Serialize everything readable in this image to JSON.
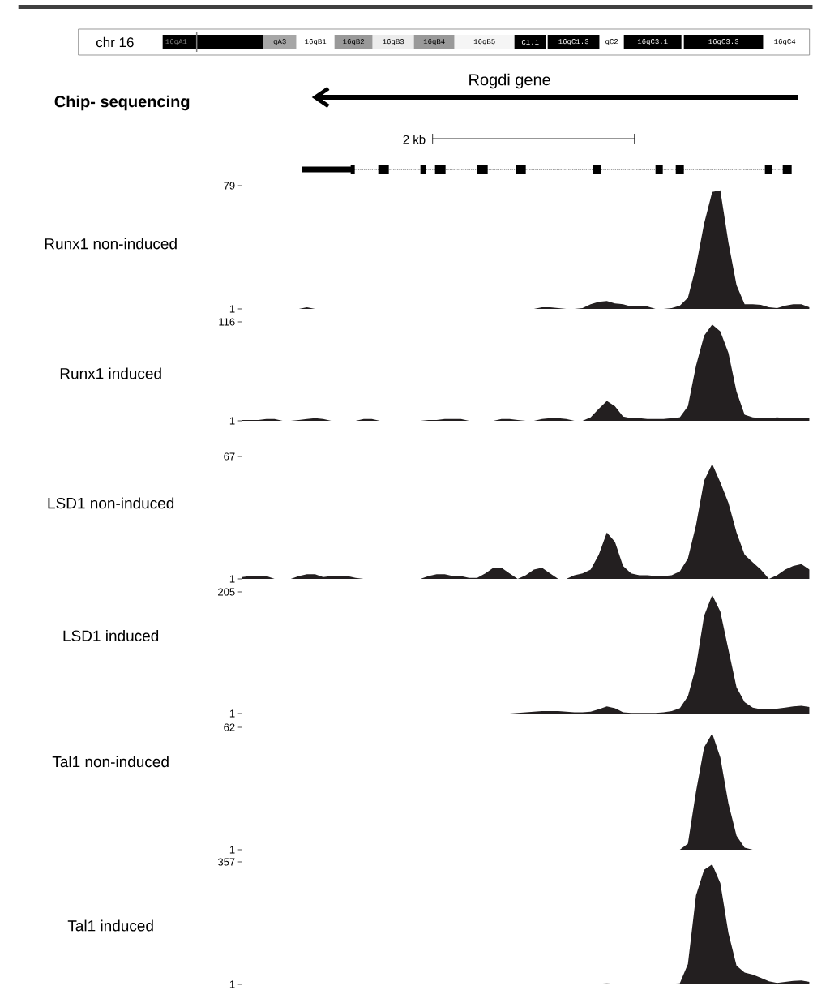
{
  "chart_data": [
    {
      "type": "area",
      "title": "Chip- sequencing",
      "ylabel": "Runx1 non-induced",
      "color": "#231f20",
      "ylim": [
        1,
        79
      ],
      "yticks": [
        1,
        79
      ],
      "tick_labels": "y",
      "annotations": [
        "chr 16",
        "16qA1",
        "qA3",
        "16qB1",
        "16qB2",
        "16qB3",
        "16qB4",
        "16qB5",
        "C1.1",
        "16qC1.3",
        "qC2",
        "16qC3.1",
        "16qC3.3",
        "16qC4",
        "Rogdi gene",
        "2 kb"
      ],
      "categories": [
        null,
        null,
        null,
        null,
        null,
        null,
        null,
        null,
        null,
        null,
        null,
        null,
        null,
        null,
        null,
        null,
        null,
        null,
        null,
        null,
        null,
        null,
        null,
        null,
        null,
        null,
        null,
        null,
        null,
        null,
        null,
        null,
        null,
        null,
        null,
        null,
        null,
        null,
        null,
        null,
        null,
        null,
        null,
        null,
        null,
        null,
        null,
        null,
        null,
        null,
        null,
        null,
        null,
        null,
        null,
        null,
        null,
        null,
        null,
        null,
        null,
        null,
        null,
        null,
        null,
        null,
        null,
        null,
        null,
        null,
        null
      ],
      "values": [
        1,
        1,
        1,
        1,
        1,
        1,
        1,
        1,
        2,
        1,
        1,
        1,
        1,
        1,
        1,
        1,
        1,
        1,
        1,
        1,
        1,
        1,
        1,
        1,
        1,
        1,
        1,
        1,
        1,
        1,
        1,
        1,
        1,
        1,
        1,
        1,
        1,
        2,
        2,
        1.5,
        1,
        1,
        1.5,
        4,
        5.5,
        6,
        4.5,
        4,
        2.5,
        2.5,
        2.5,
        1,
        1,
        1.5,
        3,
        8,
        28,
        55,
        75,
        76,
        43,
        16,
        4,
        4,
        3.5,
        2,
        1.5,
        3,
        4,
        4,
        2
      ]
    },
    {
      "type": "area",
      "ylabel": "Runx1 induced",
      "color": "#231f20",
      "ylim": [
        1,
        116
      ],
      "yticks": [
        1,
        116
      ],
      "tick_labels": "y",
      "categories": [
        null,
        null,
        null,
        null,
        null,
        null,
        null,
        null,
        null,
        null,
        null,
        null,
        null,
        null,
        null,
        null,
        null,
        null,
        null,
        null,
        null,
        null,
        null,
        null,
        null,
        null,
        null,
        null,
        null,
        null,
        null,
        null,
        null,
        null,
        null,
        null,
        null,
        null,
        null,
        null,
        null,
        null,
        null,
        null,
        null,
        null,
        null,
        null,
        null,
        null,
        null,
        null,
        null,
        null,
        null,
        null,
        null,
        null,
        null,
        null,
        null,
        null,
        null,
        null,
        null,
        null,
        null,
        null,
        null,
        null,
        null
      ],
      "values": [
        2,
        2,
        2,
        3,
        3,
        1,
        1,
        2,
        3,
        4,
        3,
        1,
        1,
        1,
        1,
        3,
        3,
        1,
        1,
        1,
        1,
        1,
        1,
        2,
        2,
        3,
        3,
        3,
        1,
        1,
        1,
        1,
        3,
        3,
        2,
        1,
        1,
        3,
        4,
        4,
        3,
        1,
        1,
        5,
        15,
        24,
        18,
        6,
        4,
        4,
        3,
        3,
        3,
        4,
        5,
        18,
        65,
        100,
        113,
        105,
        80,
        35,
        8,
        5,
        4,
        4,
        5,
        4,
        4,
        4,
        4
      ]
    },
    {
      "type": "area",
      "ylabel": "LSD1 non-induced",
      "color": "#231f20",
      "ylim": [
        1,
        67
      ],
      "yticks": [
        1,
        67
      ],
      "tick_labels": "y",
      "categories": [
        null,
        null,
        null,
        null,
        null,
        null,
        null,
        null,
        null,
        null,
        null,
        null,
        null,
        null,
        null,
        null,
        null,
        null,
        null,
        null,
        null,
        null,
        null,
        null,
        null,
        null,
        null,
        null,
        null,
        null,
        null,
        null,
        null,
        null,
        null,
        null,
        null,
        null,
        null,
        null,
        null,
        null,
        null,
        null,
        null,
        null,
        null,
        null,
        null,
        null,
        null,
        null,
        null,
        null,
        null,
        null,
        null,
        null,
        null,
        null,
        null,
        null,
        null,
        null,
        null,
        null,
        null,
        null,
        null,
        null,
        null
      ],
      "values": [
        2,
        2.5,
        2.5,
        2.5,
        1,
        1,
        1,
        2.5,
        3.5,
        3.5,
        2,
        2.5,
        2.5,
        2.5,
        1.5,
        1,
        1,
        1,
        1,
        1,
        1,
        1,
        1,
        2.5,
        3.5,
        3.5,
        2.5,
        2.5,
        1.5,
        1.5,
        4,
        7,
        7,
        4,
        1,
        3,
        6,
        7,
        4,
        1,
        1,
        3,
        4,
        6,
        14,
        26,
        21,
        8,
        4,
        3,
        3,
        2.5,
        2.5,
        3,
        5,
        12,
        30,
        54,
        63,
        53,
        42,
        26,
        14,
        10,
        6,
        1,
        3,
        6,
        8,
        9,
        6
      ]
    },
    {
      "type": "area",
      "ylabel": "LSD1 induced",
      "color": "#231f20",
      "ylim": [
        1,
        205
      ],
      "yticks": [
        1,
        205
      ],
      "tick_labels": "y",
      "categories": [
        null,
        null,
        null,
        null,
        null,
        null,
        null,
        null,
        null,
        null,
        null,
        null,
        null,
        null,
        null,
        null,
        null,
        null,
        null,
        null,
        null,
        null,
        null,
        null,
        null,
        null,
        null,
        null,
        null,
        null,
        null,
        null,
        null,
        null,
        null,
        null,
        null,
        null,
        null,
        null,
        null,
        null,
        null,
        null,
        null,
        null,
        null,
        null,
        null,
        null,
        null,
        null,
        null,
        null,
        null,
        null,
        null,
        null,
        null,
        null,
        null,
        null,
        null,
        null,
        null,
        null,
        null,
        null,
        null,
        null,
        null
      ],
      "values": [
        1,
        1,
        1,
        1,
        1,
        1,
        1,
        1,
        1,
        1,
        1,
        1,
        1,
        1,
        1,
        1,
        1,
        1,
        1,
        1,
        1,
        1,
        1,
        1,
        1,
        1,
        1,
        1,
        1,
        1,
        1,
        1,
        1,
        1,
        2,
        3,
        4,
        5,
        5,
        5,
        4,
        3,
        3,
        4,
        8,
        13,
        10,
        3,
        2,
        2,
        2,
        2,
        3,
        5,
        10,
        30,
        80,
        165,
        200,
        172,
        108,
        45,
        20,
        11,
        8,
        8,
        9,
        11,
        13,
        14,
        12
      ]
    },
    {
      "type": "area",
      "ylabel": "Tal1 non-induced",
      "color": "#231f20",
      "ylim": [
        1,
        62
      ],
      "yticks": [
        1,
        62
      ],
      "tick_labels": "y",
      "categories": [
        null,
        null,
        null,
        null,
        null,
        null,
        null,
        null,
        null,
        null,
        null,
        null,
        null,
        null,
        null,
        null,
        null,
        null,
        null,
        null,
        null,
        null,
        null,
        null,
        null,
        null,
        null,
        null,
        null,
        null,
        null,
        null,
        null,
        null,
        null,
        null,
        null,
        null,
        null,
        null,
        null,
        null,
        null,
        null,
        null,
        null,
        null,
        null,
        null,
        null,
        null,
        null,
        null,
        null,
        null,
        null,
        null,
        null,
        null,
        null,
        null,
        null,
        null,
        null,
        null,
        null,
        null,
        null,
        null,
        null,
        null
      ],
      "values": [
        1,
        1,
        1,
        1,
        1,
        1,
        1,
        1,
        1,
        1,
        1,
        1,
        1,
        1,
        1,
        1,
        1,
        1,
        1,
        1,
        1,
        1,
        1,
        1,
        1,
        1,
        1,
        1,
        1,
        1,
        1,
        1,
        1,
        1,
        1,
        1,
        1,
        1,
        1,
        1,
        1,
        1,
        1,
        1,
        1,
        1,
        1,
        1,
        1,
        1,
        1,
        1,
        1,
        1,
        1,
        4,
        30,
        52,
        59,
        47,
        24,
        8,
        2,
        1,
        1,
        1,
        1,
        1,
        1,
        1,
        1
      ]
    },
    {
      "type": "area",
      "ylabel": "Tal1 induced",
      "color": "#231f20",
      "ylim": [
        1,
        357
      ],
      "yticks": [
        1,
        357
      ],
      "tick_labels": "y",
      "categories": [
        null,
        null,
        null,
        null,
        null,
        null,
        null,
        null,
        null,
        null,
        null,
        null,
        null,
        null,
        null,
        null,
        null,
        null,
        null,
        null,
        null,
        null,
        null,
        null,
        null,
        null,
        null,
        null,
        null,
        null,
        null,
        null,
        null,
        null,
        null,
        null,
        null,
        null,
        null,
        null,
        null,
        null,
        null,
        null,
        null,
        null,
        null,
        null,
        null,
        null,
        null,
        null,
        null,
        null,
        null,
        null,
        null,
        null,
        null,
        null,
        null,
        null,
        null,
        null,
        null,
        null,
        null,
        null,
        null,
        null,
        null
      ],
      "values": [
        2,
        2,
        2,
        2,
        2,
        2,
        2,
        2,
        2,
        2,
        2,
        2,
        2,
        2,
        2,
        2,
        2,
        2,
        2,
        2,
        2,
        2,
        2,
        2,
        2,
        2,
        2,
        2,
        2,
        2,
        2,
        2,
        2,
        2,
        2,
        2,
        2,
        2,
        2,
        2,
        2,
        2,
        2,
        2,
        3,
        4,
        3,
        2,
        2,
        2,
        2,
        2,
        3,
        3,
        4,
        60,
        260,
        334,
        350,
        295,
        150,
        55,
        35,
        29,
        20,
        10,
        5,
        8,
        11,
        12,
        8
      ]
    }
  ]
}
